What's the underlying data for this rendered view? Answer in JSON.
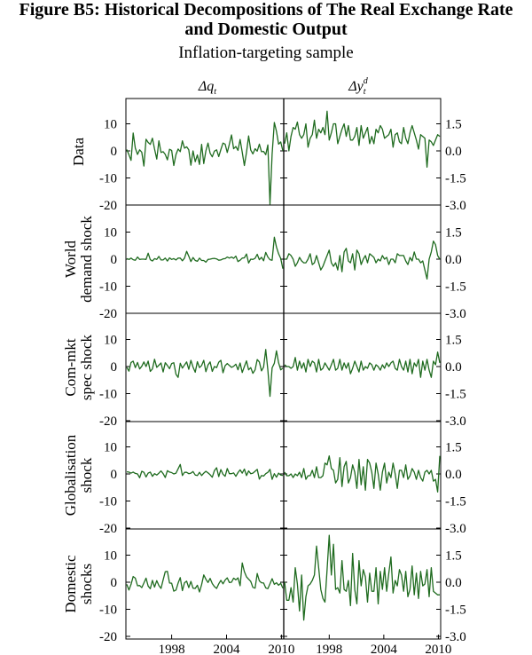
{
  "figure": {
    "title_prefix": "Figure B5",
    "title_rest": ": Historical Decompositions of The Real Exchange Rate",
    "title_line2": "and Domestic Output",
    "subtitle": "Inflation-targeting sample"
  },
  "colors": {
    "series": "#1f6b1f",
    "axis": "#000000"
  },
  "chart_data": {
    "type": "line",
    "layout": "small-multiples 5 rows x 2 columns",
    "columns": [
      {
        "name": "Δq_t",
        "label_main": "Δq",
        "label_sub": "t",
        "label_sup": ""
      },
      {
        "name": "Δy_t^d",
        "label_main": "Δy",
        "label_sub": "t",
        "label_sup": "d"
      }
    ],
    "x_range": [
      1993.0,
      2010.25
    ],
    "x_ticks": [
      1998,
      2004,
      2010
    ],
    "left_axis": {
      "ylim": [
        -20,
        20
      ],
      "ticks": [
        -20,
        -10,
        0,
        10
      ]
    },
    "right_axis": {
      "ylim": [
        -3.0,
        3.0
      ],
      "ticks": [
        "-3.0",
        "-1.5",
        "0.0",
        "1.5"
      ]
    },
    "grid": false,
    "rows": [
      {
        "label_lines": [
          "Data"
        ],
        "left_values": [
          0.5,
          -1.4,
          -3.5,
          6.6,
          1.0,
          -1.3,
          0.4,
          -0.5,
          -5.6,
          4.3,
          3.1,
          2.4,
          4.7,
          0.7,
          -3.0,
          3.7,
          -0.6,
          -0.3,
          -1.3,
          -3.3,
          0.6,
          0.2,
          -5.4,
          -1.3,
          0.7,
          -0.3,
          3.7,
          1.0,
          1.5,
          0.4,
          -5.3,
          0.0,
          -4.0,
          -1.5,
          -5.0,
          2.4,
          -4.7,
          0.0,
          2.9,
          -0.9,
          -2.2,
          -0.1,
          0.4,
          -2.1,
          0.5,
          2.9,
          2.5,
          -0.6,
          2.5,
          5.9,
          0.8,
          1.6,
          0.2,
          4.2,
          -0.5,
          -5.4,
          -0.6,
          5.5,
          0.3,
          -1.1,
          0.8,
          -0.1,
          2.5,
          -0.3,
          -0.2,
          -1.4,
          2.2,
          -20.0,
          -1.2,
          10.5,
          7.2,
          2.5,
          3.3,
          0.0
        ],
        "right_values": [
          0.4,
          1.0,
          0.0,
          0.8,
          1.3,
          1.2,
          1.6,
          0.9,
          0.7,
          0.9,
          1.5,
          0.2,
          0.7,
          0.9,
          1.7,
          0.7,
          1.2,
          1.0,
          1.3,
          0.9,
          2.2,
          0.6,
          1.0,
          1.5,
          1.5,
          0.4,
          0.8,
          1.2,
          1.5,
          0.8,
          1.4,
          0.6,
          0.6,
          0.8,
          1.3,
          0.3,
          1.4,
          0.7,
          1.0,
          1.3,
          0.4,
          0.8,
          0.4,
          1.2,
          1.0,
          1.4,
          1.2,
          0.7,
          0.8,
          0.9,
          1.2,
          0.2,
          0.9,
          1.0,
          0.5,
          0.4,
          1.3,
          0.7,
          0.4,
          1.0,
          1.4,
          1.0,
          0.6,
          0.1,
          0.9,
          0.8,
          0.7,
          -0.9,
          0.6,
          0.5,
          0.3,
          0.6,
          0.9,
          0.8
        ]
      },
      {
        "label_lines": [
          "World",
          "demand shock"
        ],
        "left_values": [
          0.2,
          -0.1,
          0.4,
          -0.2,
          -0.4,
          0.8,
          -0.1,
          0.0,
          0.0,
          -0.1,
          2.2,
          -0.2,
          -0.7,
          0.2,
          -0.1,
          1.0,
          -0.3,
          -0.3,
          0.4,
          -0.7,
          0.5,
          -0.1,
          0.2,
          -0.3,
          0.4,
          0.4,
          -0.6,
          0.4,
          2.9,
          1.1,
          -0.9,
          0.6,
          -0.5,
          -0.8,
          0.4,
          -0.5,
          -0.5,
          -1.1,
          -0.1,
          0.0,
          0.2,
          0.3,
          0.1,
          -0.4,
          -0.3,
          0.1,
          0.2,
          0.8,
          0.4,
          0.8,
          0.3,
          1.1,
          -0.9,
          -0.4,
          0.4,
          0.5,
          1.9,
          -1.4,
          0.0,
          -0.1,
          0.3,
          1.8,
          -0.2,
          0.7,
          -0.6,
          2.5,
          0.8,
          -0.2,
          -0.4,
          8.1,
          4.5,
          2.0,
          0.3,
          -3.5
        ],
        "right_values": [
          0.0,
          0.0,
          0.3,
          0.2,
          0.0,
          -0.4,
          -0.2,
          0.1,
          -0.1,
          -0.2,
          -0.2,
          0.0,
          0.3,
          -0.3,
          -0.2,
          0.2,
          -0.2,
          -0.6,
          -0.4,
          -0.1,
          0.2,
          0.5,
          -0.2,
          -0.4,
          -0.2,
          -0.6,
          0.2,
          -0.7,
          0.4,
          0.6,
          -0.1,
          -0.2,
          0.3,
          -0.6,
          0.5,
          0.3,
          -0.3,
          0.0,
          0.2,
          -0.2,
          0.3,
          0.2,
          0.1,
          -0.2,
          0.0,
          -0.1,
          0.2,
          0.0,
          0.1,
          -0.3,
          0.0,
          0.0,
          -0.2,
          0.3,
          0.2,
          0.2,
          0.2,
          -0.1,
          -0.3,
          0.1,
          -0.1,
          0.4,
          0.0,
          0.0,
          -0.2,
          -0.1,
          -0.6,
          -1.1,
          0.0,
          0.4,
          1.0,
          0.8,
          0.2,
          0.0
        ]
      },
      {
        "label_lines": [
          "Com-mkt",
          "spec shock"
        ],
        "left_values": [
          -0.3,
          -1.7,
          1.5,
          2.0,
          -0.4,
          1.5,
          -0.9,
          0.1,
          1.7,
          0.0,
          2.0,
          -1.8,
          -0.9,
          2.7,
          -0.3,
          0.5,
          1.3,
          -2.0,
          1.4,
          0.4,
          -0.8,
          1.1,
          1.4,
          -2.9,
          -4.0,
          1.2,
          -0.6,
          0.6,
          1.7,
          -1.0,
          2.3,
          -0.2,
          -2.1,
          1.8,
          -0.4,
          0.4,
          2.3,
          -1.9,
          0.6,
          1.7,
          -1.8,
          0.0,
          -0.4,
          1.6,
          2.3,
          -2.3,
          0.3,
          1.1,
          0.4,
          -0.3,
          0.1,
          0.9,
          -1.2,
          1.3,
          -2.2,
          0.0,
          2.1,
          -1.2,
          -0.4,
          -2.5,
          -1.2,
          2.6,
          1.7,
          -1.6,
          -0.2,
          6.3,
          -1.3,
          -11.0,
          -0.5,
          1.2,
          5.8,
          1.4,
          -1.2,
          -0.6
        ],
        "right_values": [
          0.1,
          0.0,
          0.0,
          -0.1,
          0.0,
          0.5,
          -0.2,
          0.3,
          -0.1,
          0.2,
          -0.3,
          0.4,
          0.0,
          0.3,
          0.2,
          -0.3,
          0.4,
          -0.2,
          -0.1,
          0.2,
          0.0,
          -0.2,
          0.1,
          0.4,
          -0.2,
          -0.1,
          0.4,
          -0.2,
          0.2,
          -0.1,
          0.2,
          -0.4,
          -0.1,
          0.3,
          0.0,
          -0.3,
          0.3,
          -0.2,
          0.0,
          -0.1,
          0.2,
          0.1,
          -0.2,
          0.1,
          0.0,
          -0.2,
          0.1,
          -0.1,
          0.2,
          0.0,
          0.2,
          0.3,
          -0.1,
          -0.2,
          0.4,
          0.0,
          -0.2,
          0.3,
          -0.3,
          0.4,
          -0.4,
          0.2,
          0.0,
          0.4,
          -0.6,
          0.3,
          -0.2,
          0.4,
          -0.2,
          -0.6,
          0.3,
          0.1,
          0.8,
          0.2
        ]
      },
      {
        "label_lines": [
          "Globalisation",
          "shock"
        ],
        "left_values": [
          0.8,
          0.7,
          0.3,
          0.7,
          0.2,
          0.0,
          -1.4,
          1.0,
          0.6,
          -1.1,
          0.3,
          0.7,
          -0.9,
          0.1,
          -0.4,
          0.3,
          1.1,
          0.1,
          -1.3,
          1.2,
          0.7,
          0.5,
          0.0,
          0.3,
          1.9,
          3.5,
          -0.6,
          0.6,
          0.6,
          0.1,
          0.3,
          0.9,
          -0.4,
          -0.6,
          0.6,
          -0.6,
          0.3,
          1.0,
          0.4,
          -0.3,
          -1.2,
          1.2,
          2.3,
          -1.0,
          1.6,
          -0.1,
          -0.9,
          2.0,
          0.1,
          0.1,
          0.4,
          -0.9,
          0.5,
          1.5,
          0.3,
          1.8,
          -0.6,
          1.1,
          0.1,
          0.3,
          1.0,
          1.7,
          -1.9,
          -0.6,
          -0.8,
          0.1,
          0.6,
          1.7,
          -2.0,
          0.1,
          -1.2,
          0.3,
          -0.4,
          -0.6
        ],
        "right_values": [
          0.1,
          -0.1,
          -0.1,
          0.0,
          -0.2,
          0.0,
          -0.1,
          0.1,
          -0.2,
          0.3,
          -0.3,
          -0.1,
          -0.1,
          0.2,
          -0.2,
          0.4,
          -0.2,
          -0.2,
          -0.1,
          0.6,
          0.5,
          1.0,
          0.3,
          0.2,
          -0.5,
          -0.3,
          0.9,
          -0.7,
          0.4,
          0.7,
          -0.5,
          -0.2,
          0.5,
          0.1,
          -0.8,
          0.8,
          -0.6,
          0.4,
          -0.9,
          0.8,
          0.6,
          0.1,
          -0.8,
          0.6,
          0.0,
          -0.9,
          0.1,
          0.6,
          -0.5,
          0.1,
          -0.2,
          0.6,
          0.0,
          -0.8,
          0.2,
          0.2,
          -0.2,
          0.5,
          -0.3,
          -0.1,
          0.3,
          0.1,
          -0.3,
          0.2,
          -0.2,
          -0.4,
          0.1,
          0.2,
          0.0,
          0.2,
          -0.4,
          -0.3,
          -1.0,
          1.0
        ]
      },
      {
        "label_lines": [
          "Domestic",
          "shocks"
        ],
        "left_values": [
          -0.8,
          -2.9,
          -0.8,
          2.1,
          1.5,
          -1.3,
          -1.2,
          -2.0,
          -0.3,
          1.5,
          -1.4,
          -2.4,
          0.7,
          -1.8,
          0.6,
          -1.2,
          -2.3,
          0.9,
          3.9,
          4.0,
          -0.3,
          -0.4,
          -3.3,
          -2.9,
          -0.3,
          1.7,
          -3.1,
          -0.2,
          0.4,
          -2.0,
          0.3,
          -2.2,
          -2.3,
          -1.1,
          -3.6,
          -0.9,
          2.7,
          1.1,
          -0.1,
          1.4,
          -0.5,
          -1.6,
          -2.3,
          -0.6,
          0.7,
          -0.6,
          0.8,
          1.6,
          -0.1,
          0.0,
          1.5,
          0.9,
          1.6,
          -1.3,
          7.1,
          3.9,
          2.0,
          1.1,
          0.3,
          -1.9,
          -2.2,
          3.2,
          0.5,
          -0.2,
          -0.3,
          -2.1,
          -2.4,
          -0.6,
          1.3,
          -0.8,
          -0.2,
          -1.1,
          -0.4,
          -2.2
        ],
        "right_values": [
          0.0,
          -1.0,
          -1.0,
          -0.3,
          -1.1,
          0.8,
          -0.1,
          -1.6,
          0.4,
          -2.1,
          -0.8,
          -0.2,
          -0.1,
          0.1,
          0.4,
          2.0,
          0.8,
          -0.4,
          -0.9,
          -1.1,
          0.7,
          2.6,
          0.4,
          2.1,
          -0.4,
          -0.3,
          -0.6,
          1.2,
          -0.4,
          -0.5,
          0.1,
          -1.3,
          1.6,
          -0.4,
          -1.2,
          1.2,
          -0.2,
          0.7,
          0.3,
          -1.1,
          0.5,
          -0.5,
          -0.5,
          0.8,
          -1.2,
          0.6,
          -0.4,
          0.8,
          -0.5,
          0.5,
          1.4,
          -0.6,
          0.1,
          -0.2,
          0.7,
          0.4,
          -0.5,
          0.6,
          -0.8,
          -0.4,
          0.9,
          -0.7,
          0.5,
          -0.9,
          0.6,
          -0.2,
          -0.1,
          0.7,
          -0.8,
          0.8,
          -0.5,
          -0.6,
          -0.7,
          -0.7
        ]
      }
    ]
  }
}
